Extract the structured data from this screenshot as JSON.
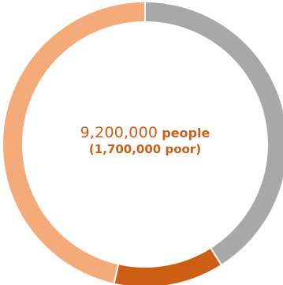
{
  "chart_data": {
    "type": "pie",
    "donut": true,
    "slices": [
      {
        "value": 41.0,
        "color": "#a8a8a8"
      },
      {
        "value": 12.5,
        "color": "#cc5f14"
      },
      {
        "value": 46.5,
        "color": "#f4aa79"
      }
    ],
    "center": {
      "number": "9,200,000",
      "unit": "people",
      "subtitle": "(1,700,000 poor)"
    }
  }
}
